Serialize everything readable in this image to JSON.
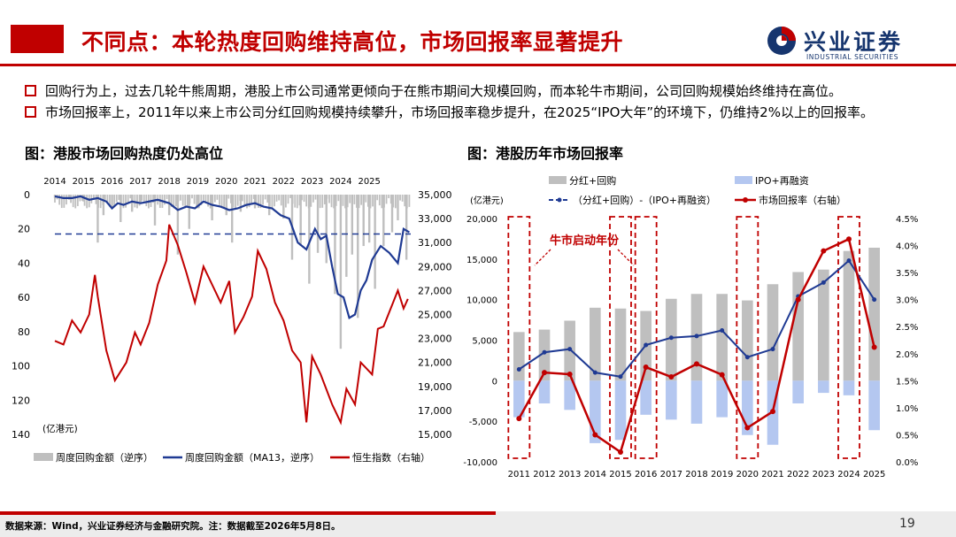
{
  "header": {
    "title": "不同点：本轮热度回购维持高位，市场回报率显著提升",
    "logo_cn": "兴业证券",
    "logo_en": "INDUSTRIAL SECURITIES"
  },
  "bullets": [
    "回购行为上，过去几轮牛熊周期，港股上市公司通常更倾向于在熊市期间大规模回购，而本轮牛市期间，公司回购规模始终维持在高位。",
    "市场回报率上，2011年以来上市公司分红回购规模持续攀升，市场回报率稳步提升，在2025“IPO大年”的环境下，仍维持2%以上的回报率。"
  ],
  "footer": {
    "note": "数据来源：Wind，兴业证券经济与金融研究院。注：数据截至2026年5月8日。",
    "page": "19"
  },
  "colors": {
    "brand_red": "#c00000",
    "gray_bar": "#bfbfbf",
    "navy_line": "#1f3a93",
    "red_line": "#c00000",
    "light_blue_bar": "#b4c7f0"
  },
  "chart_data": [
    {
      "type": "line",
      "title": "图：港股市场回购热度仍处高位",
      "unit_label": "(亿港元)",
      "x_ticks": [
        "2014",
        "2015",
        "2016",
        "2017",
        "2018",
        "2019",
        "2020",
        "2021",
        "2022",
        "2023",
        "2024",
        "2025"
      ],
      "left_axis": {
        "ticks": [
          0,
          20,
          40,
          60,
          80,
          100,
          120,
          140
        ],
        "ylim": [
          0,
          140
        ],
        "reversed": true
      },
      "right_axis": {
        "ticks": [
          "35,000",
          "33,000",
          "31,000",
          "29,000",
          "27,000",
          "25,000",
          "23,000",
          "21,000",
          "19,000",
          "17,000",
          "15,000"
        ],
        "ylim": [
          15000,
          35000
        ]
      },
      "reference_line_left": 23,
      "legend": [
        "周度回购金额（逆序）",
        "周度回购金额（MA13，逆序）",
        "恒生指数（右轴）"
      ],
      "series": [
        {
          "name": "周度回购金额（逆序）",
          "axis": "left",
          "x": [
            2014.0,
            2014.5,
            2015.0,
            2015.5,
            2015.7,
            2016.0,
            2016.3,
            2016.7,
            2017.0,
            2017.5,
            2018.0,
            2018.3,
            2018.7,
            2019.0,
            2019.5,
            2020.0,
            2020.2,
            2020.5,
            2021.0,
            2021.5,
            2022.0,
            2022.3,
            2022.6,
            2022.9,
            2023.2,
            2023.5,
            2023.8,
            2024.0,
            2024.2,
            2024.4,
            2024.6,
            2024.8,
            2025.0,
            2025.2,
            2025.5,
            2025.8,
            2026.0,
            2026.3
          ],
          "values": [
            2,
            3,
            4,
            28,
            12,
            8,
            16,
            10,
            5,
            18,
            12,
            35,
            20,
            8,
            15,
            12,
            28,
            10,
            8,
            12,
            14,
            38,
            30,
            52,
            34,
            40,
            58,
            90,
            48,
            35,
            72,
            30,
            28,
            55,
            30,
            22,
            15,
            38
          ]
        },
        {
          "name": "周度回购金额（MA13，逆序）",
          "axis": "left",
          "x": [
            2014.0,
            2014.3,
            2014.6,
            2014.9,
            2015.2,
            2015.5,
            2015.8,
            2016.0,
            2016.2,
            2016.4,
            2016.7,
            2017.0,
            2017.3,
            2017.6,
            2018.0,
            2018.3,
            2018.6,
            2018.9,
            2019.2,
            2019.5,
            2019.8,
            2020.1,
            2020.4,
            2020.7,
            2021.0,
            2021.3,
            2021.6,
            2021.9,
            2022.2,
            2022.5,
            2022.8,
            2023.1,
            2023.3,
            2023.5,
            2023.7,
            2023.9,
            2024.1,
            2024.3,
            2024.5,
            2024.7,
            2024.9,
            2025.1,
            2025.4,
            2025.7,
            2026.0,
            2026.2,
            2026.4
          ],
          "values": [
            1,
            2,
            2,
            1,
            3,
            2,
            4,
            8,
            5,
            6,
            4,
            5,
            4,
            3,
            5,
            9,
            7,
            8,
            4,
            6,
            7,
            9,
            8,
            6,
            5,
            7,
            8,
            12,
            14,
            28,
            32,
            20,
            26,
            24,
            42,
            58,
            60,
            72,
            70,
            56,
            50,
            38,
            30,
            34,
            40,
            20,
            22
          ]
        },
        {
          "name": "恒生指数（右轴）",
          "axis": "right",
          "x": [
            2014.0,
            2014.3,
            2014.6,
            2014.9,
            2015.2,
            2015.4,
            2015.5,
            2015.8,
            2016.1,
            2016.5,
            2016.8,
            2017.0,
            2017.3,
            2017.6,
            2017.9,
            2018.0,
            2018.3,
            2018.6,
            2018.9,
            2019.2,
            2019.5,
            2019.8,
            2020.1,
            2020.3,
            2020.6,
            2020.9,
            2021.1,
            2021.4,
            2021.7,
            2022.0,
            2022.3,
            2022.6,
            2022.8,
            2023.0,
            2023.3,
            2023.7,
            2024.0,
            2024.2,
            2024.5,
            2024.7,
            2024.9,
            2025.1,
            2025.3,
            2025.5,
            2025.8,
            2026.0,
            2026.2,
            2026.35
          ],
          "values": [
            22800,
            22500,
            24500,
            23500,
            25000,
            28300,
            26500,
            22000,
            19500,
            21000,
            23500,
            22500,
            24300,
            27500,
            29500,
            32500,
            30800,
            28500,
            26000,
            29000,
            27500,
            26000,
            27800,
            23500,
            24800,
            26500,
            30300,
            28800,
            26000,
            24500,
            22000,
            21000,
            16000,
            21500,
            20000,
            17500,
            16000,
            18800,
            17500,
            21000,
            20500,
            20000,
            23800,
            24000,
            25800,
            27000,
            25500,
            26300
          ]
        }
      ]
    },
    {
      "type": "bar",
      "title": "图：港股历年市场回报率",
      "unit_label": "(亿港元)",
      "categories": [
        "2011",
        "2012",
        "2013",
        "2014",
        "2015",
        "2016",
        "2017",
        "2018",
        "2019",
        "2020",
        "2021",
        "2022",
        "2023",
        "2024",
        "2025"
      ],
      "left_axis": {
        "ticks": [
          "20,000",
          "15,000",
          "10,000",
          "5,000",
          "0",
          "-5,000",
          "-10,000"
        ],
        "ylim": [
          -10000,
          20000
        ]
      },
      "right_axis": {
        "ticks": [
          "4.5%",
          "4.0%",
          "3.5%",
          "3.0%",
          "2.5%",
          "2.0%",
          "1.5%",
          "1.0%",
          "0.5%",
          "0.0%"
        ],
        "ylim": [
          0.0,
          4.5
        ]
      },
      "highlight_years": [
        "2011",
        "2015",
        "2016",
        "2020",
        "2024"
      ],
      "annotation": "牛市启动年份",
      "legend": [
        "分红+回购",
        "IPO+再融资",
        "（分红+回购）-（IPO+再融资）",
        "市场回报率（右轴）"
      ],
      "series": [
        {
          "name": "分红+回购",
          "axis": "left",
          "values": [
            6000,
            6300,
            7400,
            9000,
            8900,
            8600,
            10100,
            10700,
            10700,
            9900,
            11900,
            13400,
            13700,
            16000,
            16400
          ]
        },
        {
          "name": "IPO+再融资",
          "axis": "left",
          "values": [
            -4500,
            -2800,
            -3600,
            -7700,
            -7300,
            -4200,
            -4800,
            -5300,
            -4500,
            -6700,
            -7900,
            -2800,
            -1500,
            -1800,
            -6100
          ]
        },
        {
          "name": "（分红+回购）-（IPO+再融资）",
          "axis": "left",
          "values": [
            1400,
            3500,
            3900,
            1000,
            500,
            4400,
            5300,
            5500,
            6200,
            2900,
            3900,
            10400,
            12100,
            14800,
            10000
          ]
        },
        {
          "name": "市场回报率（右轴）",
          "axis": "right",
          "values": [
            0.8,
            1.65,
            1.62,
            0.5,
            0.18,
            1.75,
            1.57,
            1.81,
            1.61,
            0.63,
            0.93,
            3.0,
            3.9,
            4.12,
            2.12
          ]
        }
      ]
    }
  ]
}
